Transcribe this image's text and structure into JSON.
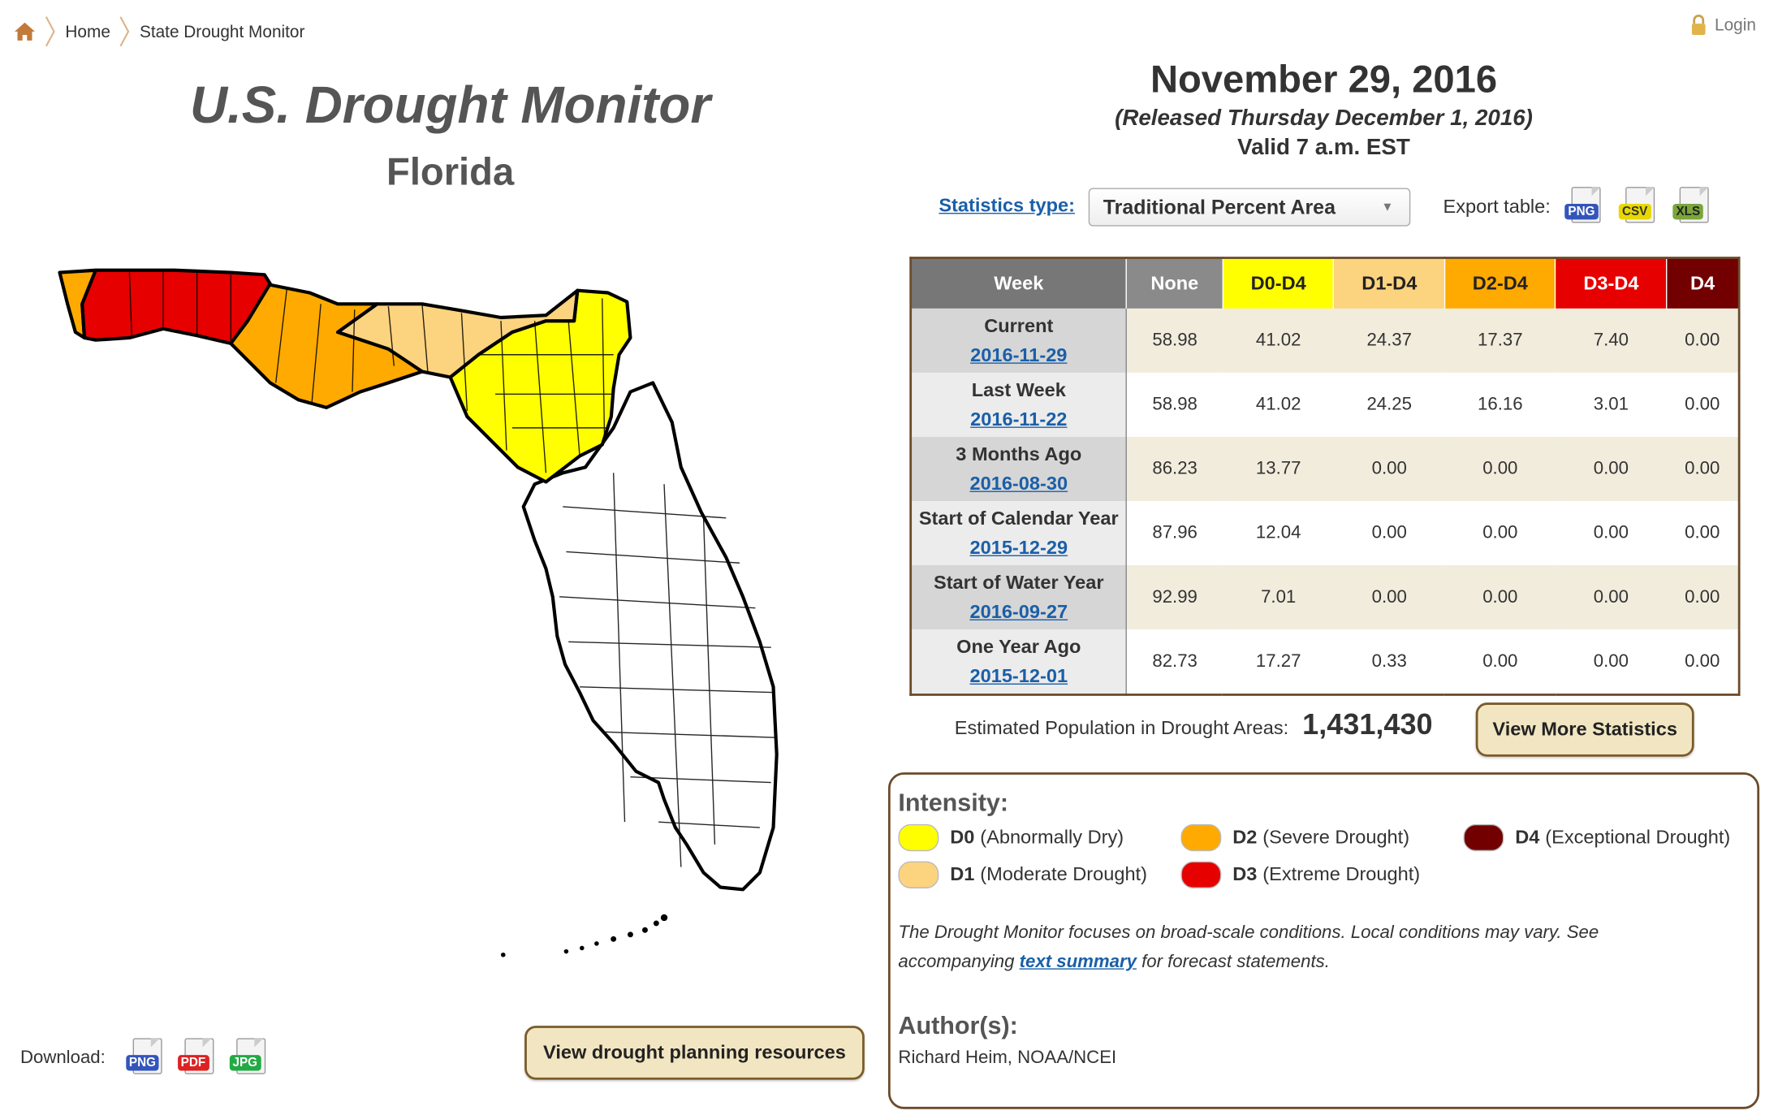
{
  "breadcrumb": {
    "home": "Home",
    "current": "State Drought Monitor"
  },
  "login": "Login",
  "header": {
    "title": "U.S. Drought Monitor",
    "state": "Florida"
  },
  "date": {
    "main": "November 29, 2016",
    "released": "(Released Thursday December 1, 2016)",
    "valid": "Valid 7 a.m. EST"
  },
  "stats": {
    "type_label": "Statistics type:",
    "type_value": "Traditional Percent Area",
    "export_label": "Export table:"
  },
  "export_icons": [
    "PNG",
    "CSV",
    "XLS"
  ],
  "download": {
    "label": "Download:",
    "icons": [
      "PNG",
      "PDF",
      "JPG"
    ]
  },
  "buttons": {
    "planning": "View drought planning resources",
    "more_stats": "View More Statistics"
  },
  "table": {
    "headers": [
      "Week",
      "None",
      "D0-D4",
      "D1-D4",
      "D2-D4",
      "D3-D4",
      "D4"
    ],
    "header_colors": [
      "#777777",
      "#8a8a8a",
      "#ffff00",
      "#fcd37f",
      "#ffaa00",
      "#e60000",
      "#730000"
    ],
    "header_text_colors": [
      "#ffffff",
      "#ffffff",
      "#222222",
      "#222222",
      "#222222",
      "#ffffff",
      "#ffffff"
    ],
    "rows": [
      {
        "label": "Current",
        "date": "2016-11-29",
        "values": [
          "58.98",
          "41.02",
          "24.37",
          "17.37",
          "7.40",
          "0.00"
        ]
      },
      {
        "label": "Last Week",
        "date": "2016-11-22",
        "values": [
          "58.98",
          "41.02",
          "24.25",
          "16.16",
          "3.01",
          "0.00"
        ]
      },
      {
        "label": "3 Months Ago",
        "date": "2016-08-30",
        "values": [
          "86.23",
          "13.77",
          "0.00",
          "0.00",
          "0.00",
          "0.00"
        ]
      },
      {
        "label": "Start of Calendar Year",
        "date": "2015-12-29",
        "values": [
          "87.96",
          "12.04",
          "0.00",
          "0.00",
          "0.00",
          "0.00"
        ]
      },
      {
        "label": "Start of Water Year",
        "date": "2016-09-27",
        "values": [
          "92.99",
          "7.01",
          "0.00",
          "0.00",
          "0.00",
          "0.00"
        ]
      },
      {
        "label": "One Year Ago",
        "date": "2015-12-01",
        "values": [
          "82.73",
          "17.27",
          "0.33",
          "0.00",
          "0.00",
          "0.00"
        ]
      }
    ]
  },
  "population": {
    "label": "Estimated Population in Drought Areas:",
    "value": "1,431,430"
  },
  "legend": {
    "heading": "Intensity:",
    "items": [
      {
        "code": "D0",
        "desc": "(Abnormally Dry)",
        "color": "#ffff00"
      },
      {
        "code": "D1",
        "desc": "(Moderate Drought)",
        "color": "#fcd37f"
      },
      {
        "code": "D2",
        "desc": "(Severe Drought)",
        "color": "#ffaa00"
      },
      {
        "code": "D3",
        "desc": "(Extreme Drought)",
        "color": "#e60000"
      },
      {
        "code": "D4",
        "desc": "(Exceptional Drought)",
        "color": "#730000"
      }
    ],
    "note_before": "The Drought Monitor focuses on broad-scale conditions. Local conditions may vary. See accompanying ",
    "note_link": "text summary",
    "note_after": " for forecast statements.",
    "author_heading": "Author(s):",
    "author": "Richard Heim, NOAA/NCEI"
  }
}
